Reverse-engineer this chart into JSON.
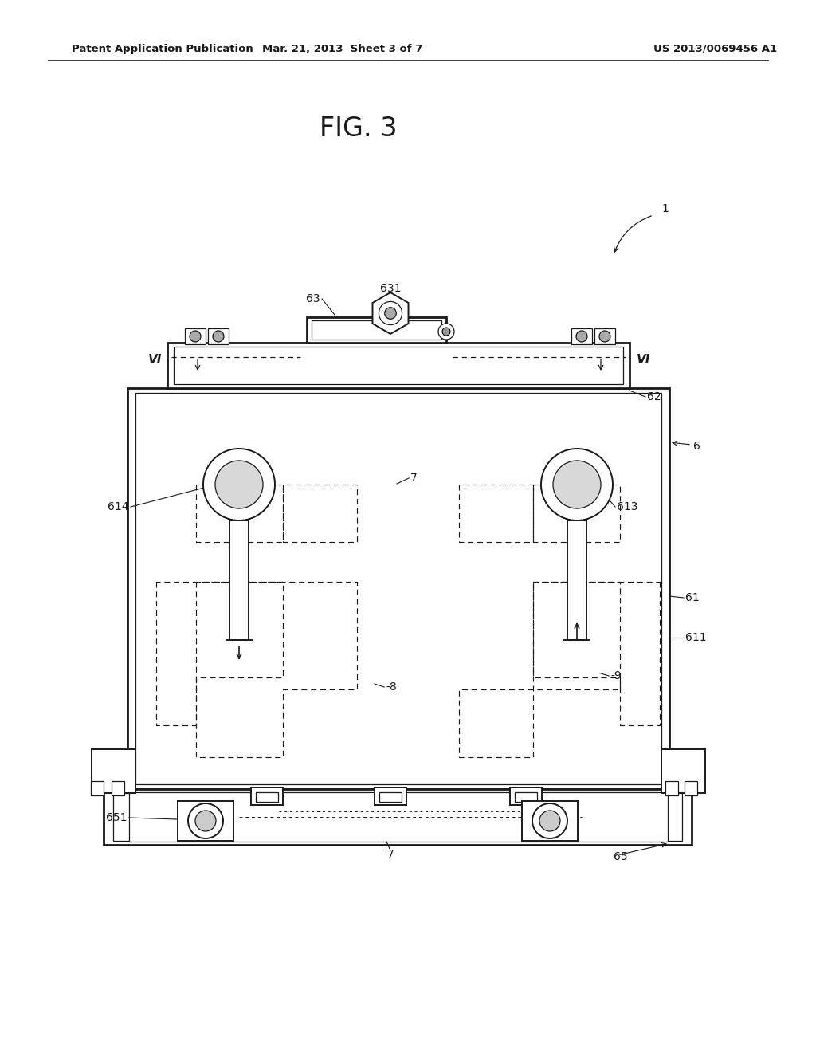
{
  "bg_color": "#ffffff",
  "lc": "#1a1a1a",
  "header_left": "Patent Application Publication",
  "header_mid": "Mar. 21, 2013  Sheet 3 of 7",
  "header_right": "US 2013/0069456 A1",
  "fig_label": "FIG. 3",
  "lw_thick": 2.0,
  "lw_med": 1.4,
  "lw_thin": 0.9,
  "lw_dash": 0.85,
  "fs_label": 10,
  "fs_header": 9,
  "fs_fig": 22
}
